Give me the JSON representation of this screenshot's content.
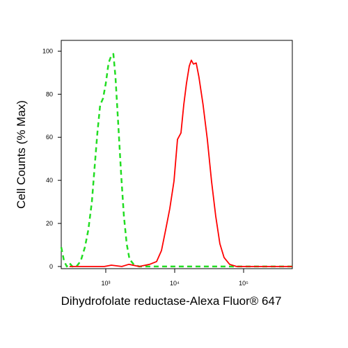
{
  "chart_data": {
    "type": "line",
    "x_label": "Dihydrofolate reductase-Alexa Fluor® 647",
    "y_label": "Cell Counts (% Max)",
    "xscale": "log",
    "xlim": [
      226,
      509000
    ],
    "ylim": [
      -1,
      105
    ],
    "xticks": [
      {
        "value": 1000,
        "label": "10³"
      },
      {
        "value": 10000,
        "label": "10⁴"
      },
      {
        "value": 100000,
        "label": "10⁵"
      }
    ],
    "yticks": [
      0,
      20,
      40,
      60,
      80,
      100
    ],
    "series": [
      {
        "color": "#22dd22",
        "dash": true,
        "x": [
          226,
          248,
          272,
          298,
          327,
          376,
          433,
          498,
          559,
          628,
          689,
          756,
          830,
          911,
          1000,
          1098,
          1205,
          1291,
          1384,
          1520,
          1668,
          1831,
          2010,
          2206,
          2535,
          3056,
          6135,
          31200,
          509000
        ],
        "values": [
          9,
          2.6,
          0,
          1.6,
          0,
          0,
          2.6,
          9,
          17,
          30,
          46,
          62,
          75,
          78,
          85,
          94.5,
          98,
          98.7,
          88,
          65.5,
          43,
          23.5,
          10.6,
          3.5,
          1,
          0,
          0,
          0,
          0
        ]
      },
      {
        "color": "#ff0000",
        "dash": false,
        "x": [
          298,
          955,
          1205,
          1708,
          2154,
          3056,
          4333,
          5461,
          6432,
          7389,
          8489,
          9770,
          10970,
          12330,
          13520,
          14830,
          16270,
          17430,
          18690,
          20500,
          22490,
          25860,
          29750,
          34210,
          39340,
          45250,
          52050,
          62690,
          79140,
          509000
        ],
        "values": [
          0,
          0,
          0.6,
          0,
          1,
          0,
          1,
          2.3,
          7.4,
          17,
          26.8,
          39.7,
          59,
          62,
          75,
          85,
          93,
          95.8,
          94,
          94.5,
          88,
          75,
          59,
          39.7,
          23.5,
          10.6,
          4.2,
          1,
          0,
          0
        ]
      }
    ]
  }
}
